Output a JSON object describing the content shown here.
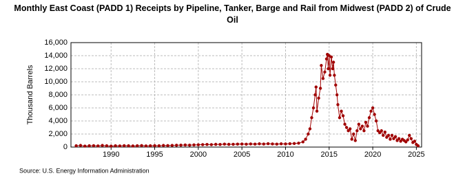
{
  "chart_data": {
    "type": "line",
    "title": "Monthly East Coast (PADD 1) Receipts by Pipeline, Tanker, Barge and Rail from Midwest (PADD 2) of Crude Oil",
    "y_label": "Thousand Barrels",
    "source": "Source: U.S. Energy Information Administration",
    "color": "#a00000",
    "grid": true,
    "xlim": [
      1985.4,
      2025.6
    ],
    "xticks": [
      1990,
      1995,
      2000,
      2005,
      2010,
      2015,
      2020,
      2025
    ],
    "ylim": [
      0,
      16000
    ],
    "yticks": [
      0,
      {
        "value": 2000,
        "label": "2,000"
      },
      {
        "value": 4000,
        "label": "4,000"
      },
      {
        "value": 6000,
        "label": "6,000"
      },
      {
        "value": 8000,
        "label": "8,000"
      },
      {
        "value": 10000,
        "label": "10,000"
      },
      {
        "value": 12000,
        "label": "12,000"
      },
      {
        "value": 14000,
        "label": "14,000"
      },
      {
        "value": 16000,
        "label": "16,000"
      }
    ],
    "x": [
      1986,
      1986.5,
      1987,
      1987.5,
      1988,
      1988.5,
      1989,
      1989.5,
      1990,
      1990.5,
      1991,
      1991.5,
      1992,
      1992.5,
      1993,
      1993.5,
      1994,
      1994.5,
      1995,
      1995.5,
      1996,
      1996.5,
      1997,
      1997.5,
      1998,
      1998.5,
      1999,
      1999.5,
      2000,
      2000.5,
      2001,
      2001.5,
      2002,
      2002.5,
      2003,
      2003.5,
      2004,
      2004.5,
      2005,
      2005.5,
      2006,
      2006.5,
      2007,
      2007.5,
      2008,
      2008.5,
      2009,
      2009.5,
      2010,
      2010.5,
      2011,
      2011.5,
      2012,
      2012.3,
      2012.6,
      2012.8,
      2013,
      2013.2,
      2013.4,
      2013.5,
      2013.6,
      2013.8,
      2014,
      2014.1,
      2014.3,
      2014.5,
      2014.7,
      2014.8,
      2014.9,
      2015,
      2015.1,
      2015.25,
      2015.4,
      2015.5,
      2015.6,
      2015.75,
      2015.9,
      2016,
      2016.2,
      2016.4,
      2016.6,
      2016.8,
      2017,
      2017.2,
      2017.4,
      2017.6,
      2017.8,
      2018,
      2018.2,
      2018.4,
      2018.6,
      2018.8,
      2019,
      2019.2,
      2019.4,
      2019.6,
      2019.8,
      2020,
      2020.2,
      2020.4,
      2020.6,
      2020.8,
      2021,
      2021.2,
      2021.4,
      2021.6,
      2021.8,
      2022,
      2022.2,
      2022.4,
      2022.6,
      2022.8,
      2023,
      2023.2,
      2023.4,
      2023.6,
      2023.8,
      2024,
      2024.2,
      2024.4,
      2024.6,
      2024.8,
      2025,
      2025.2
    ],
    "values": [
      200,
      250,
      150,
      200,
      220,
      180,
      250,
      200,
      150,
      200,
      180,
      220,
      200,
      170,
      200,
      230,
      180,
      200,
      220,
      200,
      250,
      230,
      260,
      280,
      300,
      320,
      300,
      330,
      350,
      380,
      400,
      380,
      420,
      400,
      450,
      420,
      430,
      450,
      470,
      440,
      480,
      450,
      500,
      470,
      520,
      480,
      450,
      500,
      480,
      520,
      550,
      600,
      800,
      1200,
      2000,
      2800,
      4500,
      6000,
      8000,
      9200,
      5500,
      7500,
      9000,
      12500,
      10500,
      11500,
      13500,
      14200,
      12000,
      14000,
      11000,
      13800,
      12000,
      13000,
      11000,
      9500,
      8000,
      6500,
      4500,
      5500,
      4800,
      3500,
      3000,
      2500,
      2800,
      1200,
      2000,
      1000,
      2500,
      3500,
      2800,
      3200,
      2500,
      3800,
      3200,
      4500,
      5500,
      6000,
      5000,
      4000,
      2500,
      2200,
      2500,
      1800,
      2300,
      1500,
      1800,
      1200,
      1800,
      1300,
      1600,
      1000,
      1300,
      900,
      1200,
      1000,
      800,
      1100,
      1800,
      1300,
      700,
      900,
      400,
      200
    ]
  }
}
